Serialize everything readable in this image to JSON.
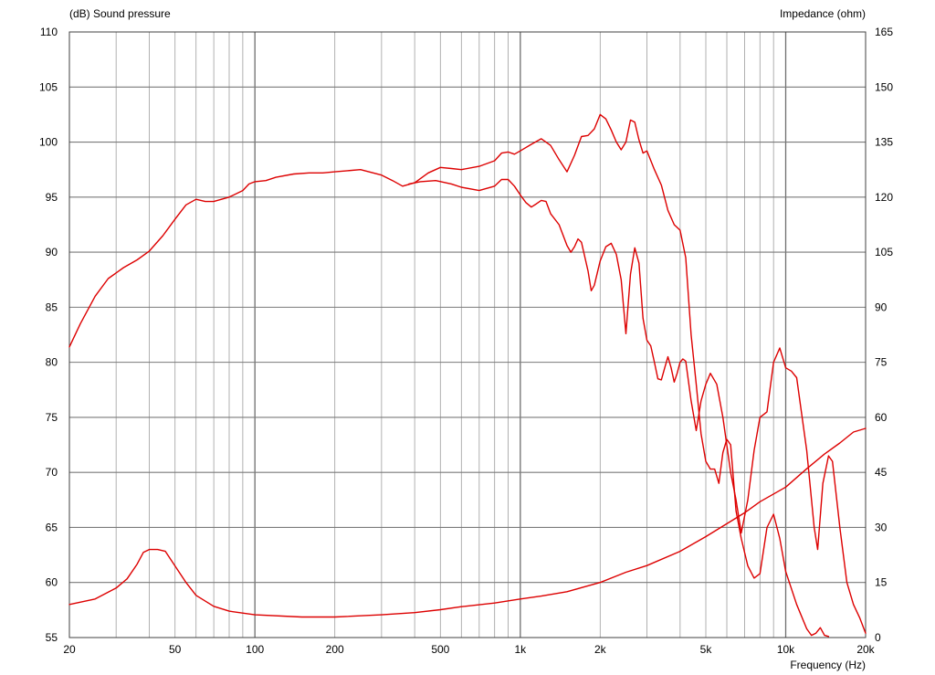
{
  "chart_data": {
    "type": "line",
    "left_axis_title": "(dB)  Sound pressure",
    "right_axis_title": "Impedance  (ohm)",
    "xlabel": "Frequency  (Hz)",
    "x_scale": "log",
    "xlim": [
      20,
      20000
    ],
    "ylim_left": [
      55,
      110
    ],
    "ylim_right": [
      0,
      165
    ],
    "grid": true,
    "line_color": "#dd0000",
    "grid_color": "#808080",
    "x_ticks": [
      {
        "value": 20,
        "label": "20"
      },
      {
        "value": 50,
        "label": "50"
      },
      {
        "value": 100,
        "label": "100"
      },
      {
        "value": 200,
        "label": "200"
      },
      {
        "value": 500,
        "label": "500"
      },
      {
        "value": 1000,
        "label": "1k"
      },
      {
        "value": 2000,
        "label": "2k"
      },
      {
        "value": 5000,
        "label": "5k"
      },
      {
        "value": 10000,
        "label": "10k"
      },
      {
        "value": 20000,
        "label": "20k"
      }
    ],
    "y_ticks_left": [
      {
        "value": 110,
        "label": "110"
      },
      {
        "value": 105,
        "label": "105"
      },
      {
        "value": 100,
        "label": "100"
      },
      {
        "value": 95,
        "label": "95"
      },
      {
        "value": 90,
        "label": "90"
      },
      {
        "value": 85,
        "label": "85"
      },
      {
        "value": 80,
        "label": "80"
      },
      {
        "value": 75,
        "label": "75"
      },
      {
        "value": 70,
        "label": "70"
      },
      {
        "value": 65,
        "label": "65"
      },
      {
        "value": 60,
        "label": "60"
      },
      {
        "value": 55,
        "label": "55"
      }
    ],
    "y_ticks_right": [
      {
        "value": 165,
        "label": "165"
      },
      {
        "value": 150,
        "label": "150"
      },
      {
        "value": 135,
        "label": "135"
      },
      {
        "value": 120,
        "label": "120"
      },
      {
        "value": 105,
        "label": "105"
      },
      {
        "value": 90,
        "label": "90"
      },
      {
        "value": 75,
        "label": "75"
      },
      {
        "value": 60,
        "label": "60"
      },
      {
        "value": 45,
        "label": "45"
      },
      {
        "value": 30,
        "label": "30"
      },
      {
        "value": 15,
        "label": "15"
      },
      {
        "value": 0,
        "label": "0"
      }
    ],
    "series": [
      {
        "axis": "left",
        "points": [
          [
            20,
            81.4
          ],
          [
            22,
            83.5
          ],
          [
            25,
            86.0
          ],
          [
            28,
            87.6
          ],
          [
            32,
            88.6
          ],
          [
            36,
            89.3
          ],
          [
            40,
            90.1
          ],
          [
            45,
            91.5
          ],
          [
            50,
            93.0
          ],
          [
            55,
            94.3
          ],
          [
            60,
            94.8
          ],
          [
            65,
            94.6
          ],
          [
            70,
            94.6
          ],
          [
            80,
            95.0
          ],
          [
            90,
            95.6
          ],
          [
            95,
            96.2
          ],
          [
            100,
            96.4
          ],
          [
            110,
            96.5
          ],
          [
            120,
            96.8
          ],
          [
            140,
            97.1
          ],
          [
            160,
            97.2
          ],
          [
            180,
            97.2
          ],
          [
            200,
            97.3
          ],
          [
            250,
            97.5
          ],
          [
            300,
            97.0
          ],
          [
            330,
            96.5
          ],
          [
            360,
            96.0
          ],
          [
            400,
            96.3
          ],
          [
            450,
            97.2
          ],
          [
            500,
            97.7
          ],
          [
            550,
            97.6
          ],
          [
            600,
            97.5
          ],
          [
            700,
            97.8
          ],
          [
            800,
            98.3
          ],
          [
            850,
            99.0
          ],
          [
            900,
            99.1
          ],
          [
            950,
            98.9
          ],
          [
            1000,
            99.2
          ],
          [
            1100,
            99.8
          ],
          [
            1200,
            100.3
          ],
          [
            1300,
            99.7
          ],
          [
            1400,
            98.4
          ],
          [
            1500,
            97.3
          ],
          [
            1600,
            98.8
          ],
          [
            1700,
            100.5
          ],
          [
            1800,
            100.6
          ],
          [
            1900,
            101.2
          ],
          [
            2000,
            102.5
          ],
          [
            2100,
            102.1
          ],
          [
            2200,
            101.1
          ],
          [
            2300,
            100.0
          ],
          [
            2400,
            99.3
          ],
          [
            2500,
            100.0
          ],
          [
            2600,
            102.0
          ],
          [
            2700,
            101.8
          ],
          [
            2800,
            100.2
          ],
          [
            2900,
            99.0
          ],
          [
            3000,
            99.2
          ],
          [
            3200,
            97.5
          ],
          [
            3400,
            96.1
          ],
          [
            3600,
            93.8
          ],
          [
            3800,
            92.5
          ],
          [
            4000,
            92.0
          ],
          [
            4200,
            89.5
          ],
          [
            4400,
            82.5
          ],
          [
            4600,
            78.0
          ],
          [
            4800,
            73.5
          ],
          [
            5000,
            71.0
          ],
          [
            5200,
            70.3
          ],
          [
            5400,
            70.3
          ],
          [
            5600,
            69.0
          ],
          [
            5800,
            71.8
          ],
          [
            6000,
            73.0
          ],
          [
            6200,
            72.5
          ],
          [
            6500,
            66.5
          ],
          [
            6800,
            64.0
          ],
          [
            7200,
            61.5
          ],
          [
            7600,
            60.4
          ],
          [
            8000,
            60.8
          ],
          [
            8500,
            65.0
          ],
          [
            9000,
            66.2
          ],
          [
            9500,
            64.0
          ],
          [
            10000,
            61.0
          ],
          [
            11000,
            58.0
          ],
          [
            12000,
            55.8
          ],
          [
            12500,
            55.2
          ],
          [
            13000,
            55.4
          ],
          [
            13500,
            55.9
          ],
          [
            14000,
            55.2
          ],
          [
            14500,
            55.1
          ]
        ]
      },
      {
        "axis": "left",
        "points": [
          [
            380,
            96.2
          ],
          [
            420,
            96.4
          ],
          [
            480,
            96.5
          ],
          [
            550,
            96.2
          ],
          [
            600,
            95.9
          ],
          [
            700,
            95.6
          ],
          [
            800,
            96.0
          ],
          [
            850,
            96.6
          ],
          [
            900,
            96.6
          ],
          [
            950,
            96.0
          ],
          [
            1000,
            95.2
          ],
          [
            1050,
            94.5
          ],
          [
            1100,
            94.1
          ],
          [
            1150,
            94.4
          ],
          [
            1200,
            94.7
          ],
          [
            1250,
            94.6
          ],
          [
            1300,
            93.5
          ],
          [
            1400,
            92.5
          ],
          [
            1500,
            90.6
          ],
          [
            1550,
            90.0
          ],
          [
            1600,
            90.5
          ],
          [
            1650,
            91.2
          ],
          [
            1700,
            90.9
          ],
          [
            1800,
            88.3
          ],
          [
            1850,
            86.5
          ],
          [
            1900,
            87.0
          ],
          [
            2000,
            89.2
          ],
          [
            2100,
            90.5
          ],
          [
            2200,
            90.8
          ],
          [
            2300,
            89.8
          ],
          [
            2400,
            87.5
          ],
          [
            2500,
            82.6
          ],
          [
            2600,
            88.0
          ],
          [
            2700,
            90.4
          ],
          [
            2800,
            89.0
          ],
          [
            2900,
            84.0
          ],
          [
            3000,
            82.0
          ],
          [
            3100,
            81.5
          ],
          [
            3200,
            80.0
          ],
          [
            3300,
            78.5
          ],
          [
            3400,
            78.4
          ],
          [
            3500,
            79.5
          ],
          [
            3600,
            80.5
          ],
          [
            3700,
            79.5
          ],
          [
            3800,
            78.2
          ],
          [
            3900,
            79.0
          ],
          [
            4000,
            80.0
          ],
          [
            4100,
            80.3
          ],
          [
            4200,
            80.1
          ],
          [
            4400,
            76.5
          ],
          [
            4600,
            73.8
          ],
          [
            4800,
            76.5
          ],
          [
            5000,
            78.0
          ],
          [
            5200,
            79.0
          ],
          [
            5500,
            78.0
          ],
          [
            5800,
            75.0
          ],
          [
            6200,
            70.0
          ],
          [
            6500,
            67.5
          ],
          [
            6800,
            64.5
          ],
          [
            7200,
            67.5
          ],
          [
            7600,
            72.0
          ],
          [
            8000,
            75.0
          ],
          [
            8500,
            75.5
          ],
          [
            9000,
            80.0
          ],
          [
            9500,
            81.3
          ],
          [
            10000,
            79.5
          ],
          [
            10500,
            79.2
          ],
          [
            11000,
            78.6
          ],
          [
            12000,
            72.0
          ],
          [
            12800,
            65.0
          ],
          [
            13200,
            63.0
          ],
          [
            13800,
            69.0
          ],
          [
            14500,
            71.5
          ],
          [
            15000,
            71.0
          ],
          [
            16000,
            65.0
          ],
          [
            17000,
            60.0
          ],
          [
            18000,
            58.0
          ],
          [
            19000,
            56.8
          ],
          [
            20000,
            55.4
          ]
        ]
      },
      {
        "axis": "right",
        "points": [
          [
            20,
            9.0
          ],
          [
            25,
            10.5
          ],
          [
            30,
            13.5
          ],
          [
            33,
            16.0
          ],
          [
            36,
            20.0
          ],
          [
            38,
            23.2
          ],
          [
            40,
            24.0
          ],
          [
            43,
            24.0
          ],
          [
            46,
            23.5
          ],
          [
            50,
            19.5
          ],
          [
            55,
            15.0
          ],
          [
            60,
            11.5
          ],
          [
            70,
            8.5
          ],
          [
            80,
            7.2
          ],
          [
            100,
            6.2
          ],
          [
            150,
            5.6
          ],
          [
            200,
            5.6
          ],
          [
            300,
            6.2
          ],
          [
            400,
            6.8
          ],
          [
            500,
            7.6
          ],
          [
            600,
            8.4
          ],
          [
            800,
            9.4
          ],
          [
            1000,
            10.5
          ],
          [
            1200,
            11.3
          ],
          [
            1500,
            12.5
          ],
          [
            2000,
            15.0
          ],
          [
            2500,
            17.8
          ],
          [
            3000,
            19.6
          ],
          [
            4000,
            23.5
          ],
          [
            5000,
            27.5
          ],
          [
            6000,
            31.0
          ],
          [
            7000,
            34.0
          ],
          [
            8000,
            37.0
          ],
          [
            10000,
            41.0
          ],
          [
            12000,
            46.0
          ],
          [
            14000,
            50.0
          ],
          [
            16000,
            53.0
          ],
          [
            18000,
            56.0
          ],
          [
            20000,
            57.0
          ]
        ]
      }
    ]
  }
}
